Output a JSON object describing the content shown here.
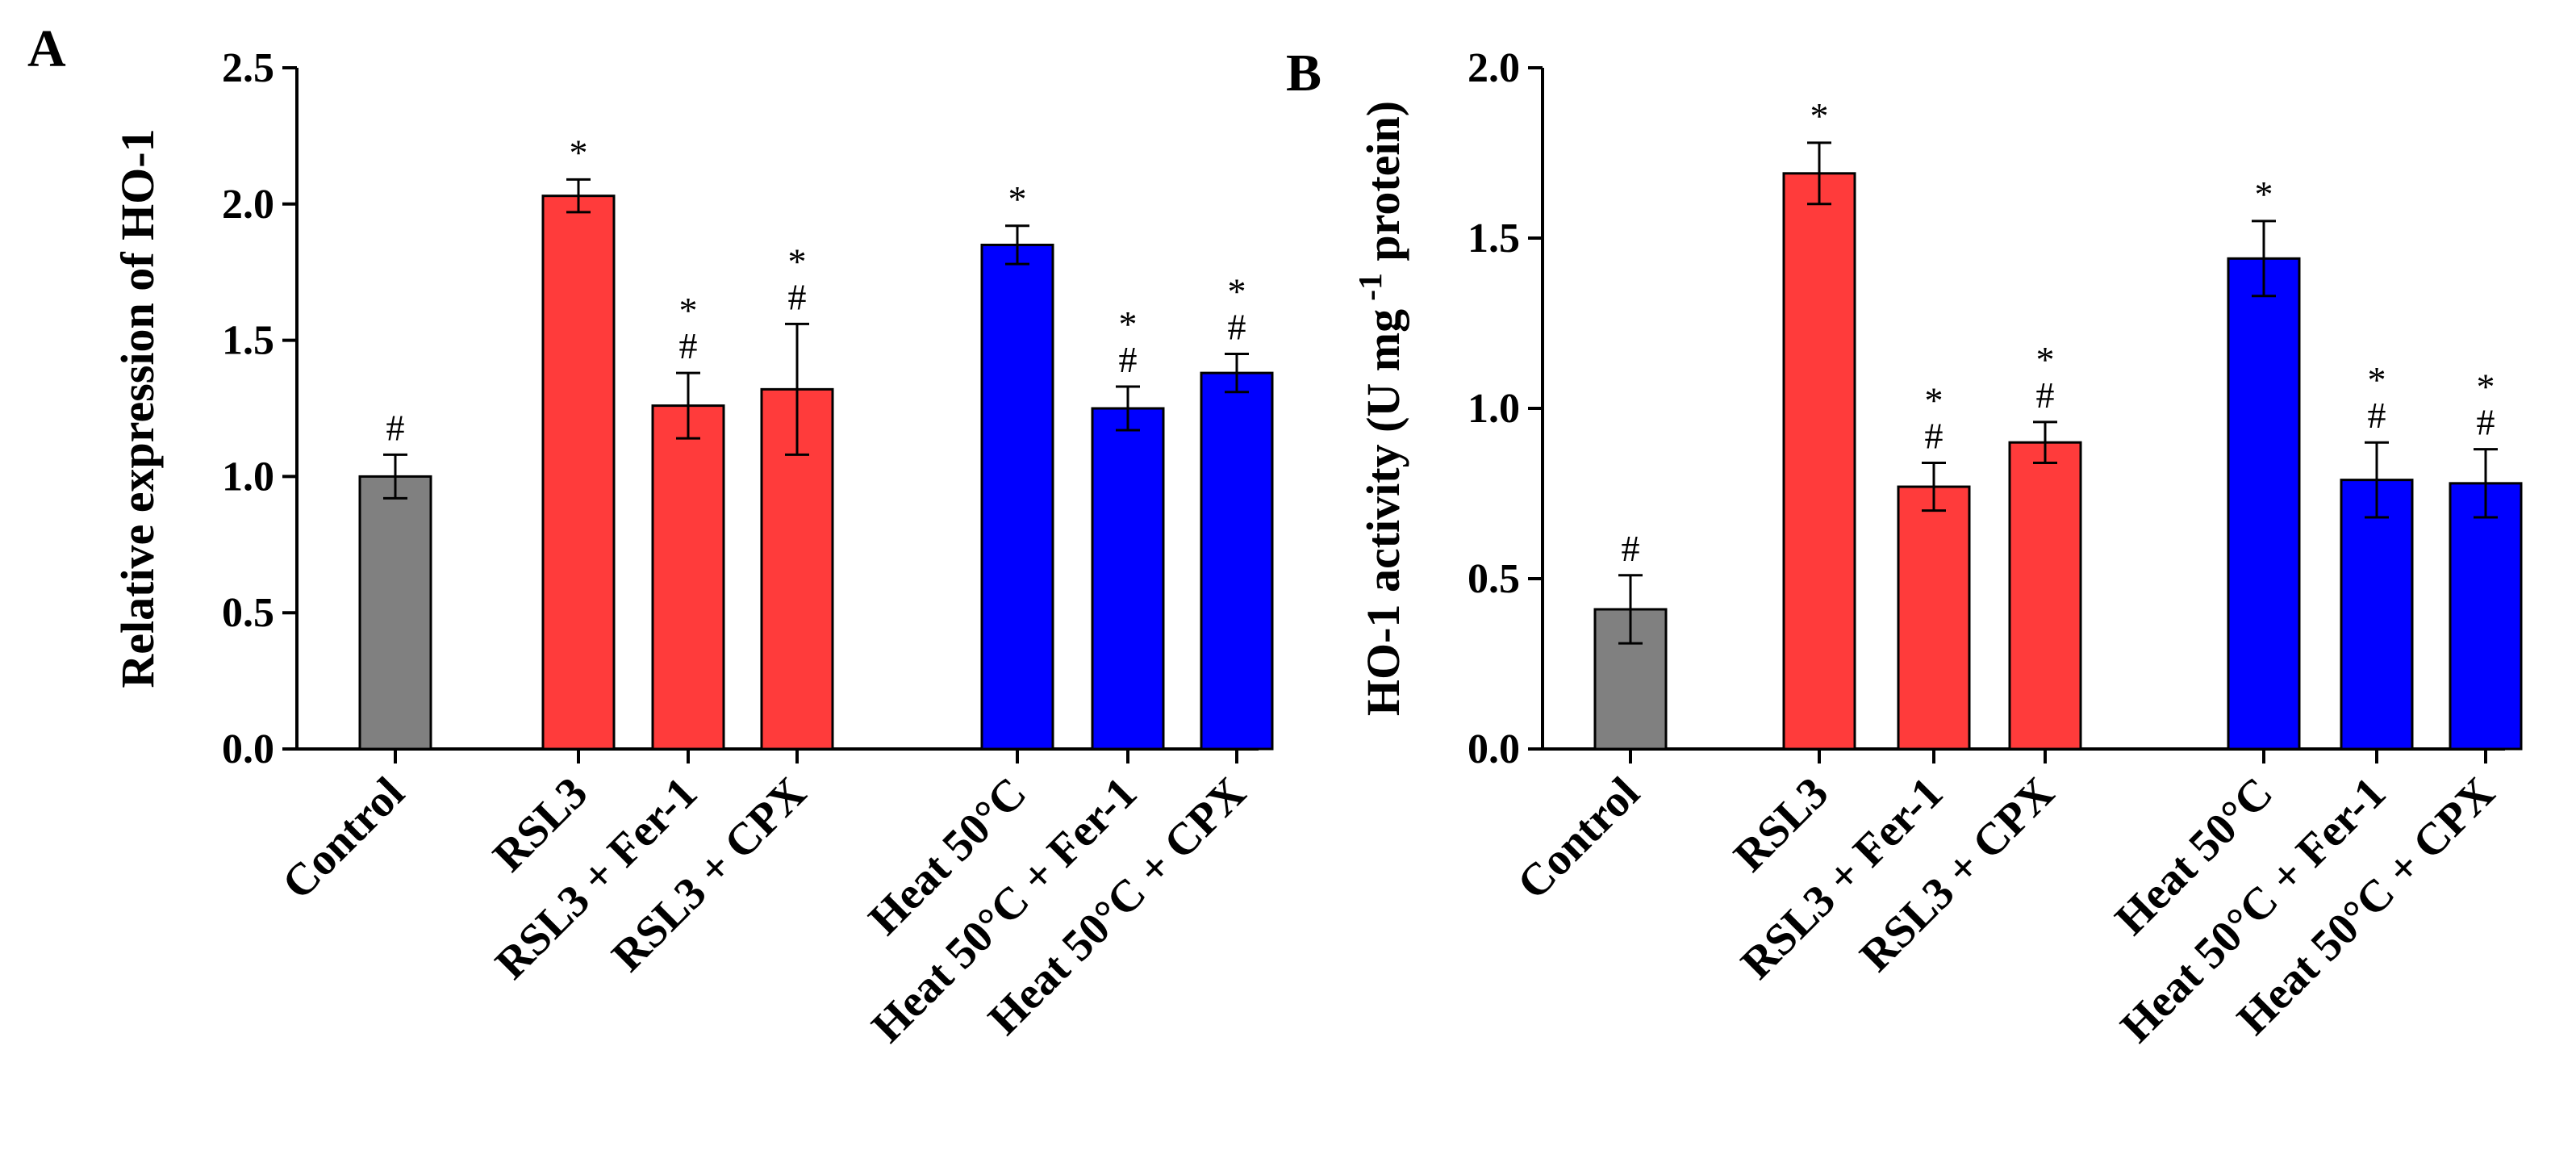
{
  "colors": {
    "control": "#808080",
    "rsl3": "#FF3B3B",
    "heat": "#0000FF",
    "axis": "#000000"
  },
  "chart_data": [
    {
      "panel_label": "A",
      "type": "bar",
      "ylabel": "Relative expression of HO-1",
      "ylim": [
        0,
        2.5
      ],
      "yticks": [
        "0.0",
        "0.5",
        "1.0",
        "1.5",
        "2.0",
        "2.5"
      ],
      "categories": [
        "Control",
        "RSL3",
        "RSL3 + Fer-1",
        "RSL3 + CPX",
        "Heat 50°C",
        "Heat 50°C + Fer-1",
        "Heat 50°C + CPX"
      ],
      "values": [
        1.0,
        2.03,
        1.26,
        1.32,
        1.85,
        1.25,
        1.38
      ],
      "errors": [
        0.08,
        0.06,
        0.12,
        0.24,
        0.07,
        0.08,
        0.07
      ],
      "annotations": [
        [
          "#"
        ],
        [
          "*"
        ],
        [
          "*",
          "#"
        ],
        [
          "*",
          "#"
        ],
        [
          "*"
        ],
        [
          "*",
          "#"
        ],
        [
          "*",
          "#"
        ]
      ],
      "bar_groups": [
        "control",
        "rsl3",
        "rsl3",
        "rsl3",
        "heat",
        "heat",
        "heat"
      ],
      "grid": false,
      "legend": "none"
    },
    {
      "panel_label": "B",
      "type": "bar",
      "ylabel": "HO-1 activity (U mg",
      "ylabel_sup": "-1",
      "ylabel_tail": " protein)",
      "ylim": [
        0,
        2.0
      ],
      "yticks": [
        "0.0",
        "0.5",
        "1.0",
        "1.5",
        "2.0"
      ],
      "categories": [
        "Control",
        "RSL3",
        "RSL3 + Fer-1",
        "RSL3 + CPX",
        "Heat 50°C",
        "Heat 50°C + Fer-1",
        "Heat 50°C + CPX"
      ],
      "values": [
        0.41,
        1.69,
        0.77,
        0.9,
        1.44,
        0.79,
        0.78
      ],
      "errors": [
        0.1,
        0.09,
        0.07,
        0.06,
        0.11,
        0.11,
        0.1
      ],
      "annotations": [
        [
          "#"
        ],
        [
          "*"
        ],
        [
          "*",
          "#"
        ],
        [
          "*",
          "#"
        ],
        [
          "*"
        ],
        [
          "*",
          "#"
        ],
        [
          "*",
          "#"
        ]
      ],
      "bar_groups": [
        "control",
        "rsl3",
        "rsl3",
        "rsl3",
        "heat",
        "heat",
        "heat"
      ],
      "grid": false,
      "legend": "none"
    }
  ]
}
